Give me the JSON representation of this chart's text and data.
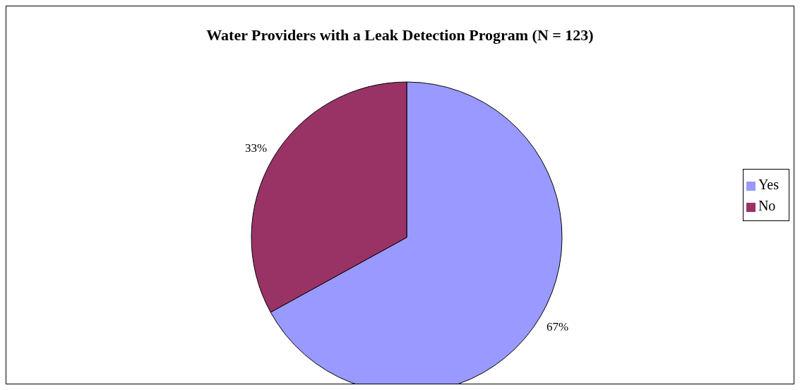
{
  "chart_data": {
    "type": "pie",
    "title": "Water Providers with a Leak Detection Program (N = 123)",
    "categories": [
      "Yes",
      "No"
    ],
    "values": [
      67,
      33
    ],
    "colors": [
      "#9999ff",
      "#993366"
    ],
    "value_labels": [
      "67%",
      "33%"
    ],
    "legend": "right"
  }
}
